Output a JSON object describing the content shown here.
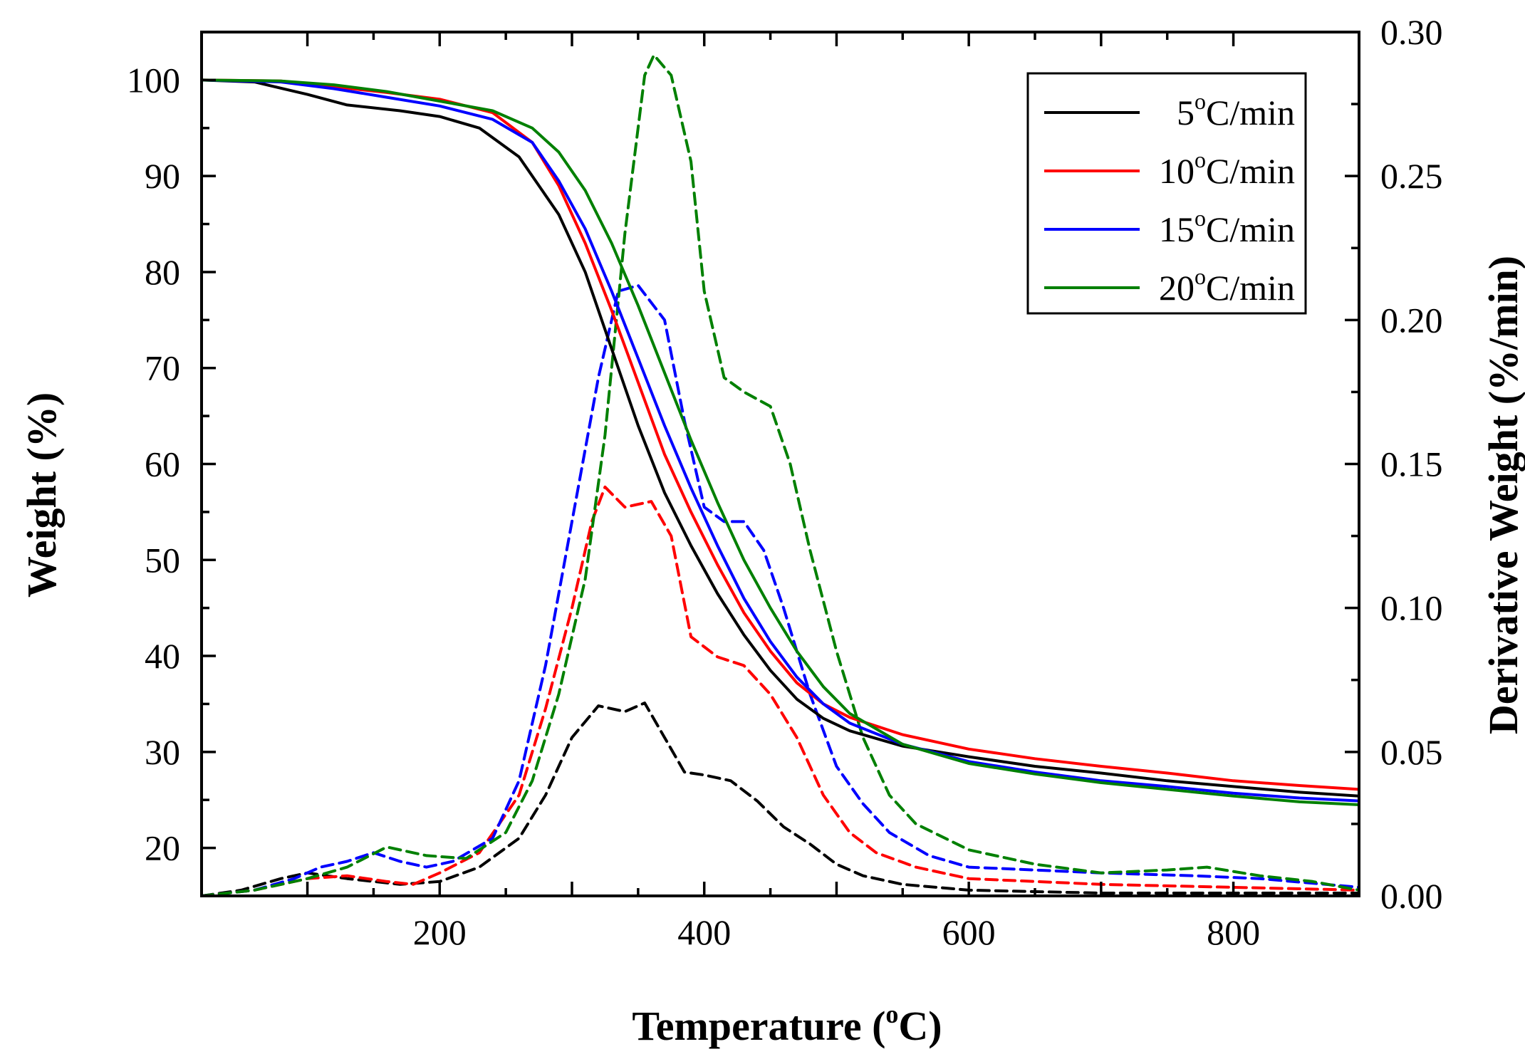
{
  "chart_data": {
    "type": "line",
    "title": "",
    "xlabel_main": "Temperature (",
    "xlabel_sup": "o",
    "xlabel_tail": "C)",
    "ylabel": "Weight (%)",
    "y2label": "Derivative Weight (%/min)",
    "xlim": [
      20,
      895
    ],
    "ylim": [
      15,
      105
    ],
    "y2lim": [
      0,
      0.3
    ],
    "x_ticks": [
      200,
      400,
      600,
      800
    ],
    "y_ticks": [
      20,
      30,
      40,
      50,
      60,
      70,
      80,
      90,
      100
    ],
    "y2_ticks": [
      "0.00",
      "0.05",
      "0.10",
      "0.15",
      "0.20",
      "0.25",
      "0.30"
    ],
    "legend_position": "top-right",
    "series": [
      {
        "name": "5",
        "legend_prefix": "5",
        "legend_sup": "o",
        "legend_suffix": "C/min",
        "color": "#000000",
        "weight": [
          [
            20,
            100
          ],
          [
            60,
            99.8
          ],
          [
            100,
            98.5
          ],
          [
            130,
            97.4
          ],
          [
            170,
            96.8
          ],
          [
            200,
            96.2
          ],
          [
            230,
            95
          ],
          [
            260,
            92
          ],
          [
            290,
            86
          ],
          [
            310,
            80
          ],
          [
            330,
            72
          ],
          [
            350,
            64
          ],
          [
            370,
            57
          ],
          [
            390,
            51.5
          ],
          [
            410,
            46.5
          ],
          [
            430,
            42.2
          ],
          [
            450,
            38.5
          ],
          [
            470,
            35.5
          ],
          [
            490,
            33.5
          ],
          [
            510,
            32.2
          ],
          [
            550,
            30.6
          ],
          [
            600,
            29.5
          ],
          [
            650,
            28.5
          ],
          [
            700,
            27.8
          ],
          [
            750,
            27
          ],
          [
            800,
            26.4
          ],
          [
            850,
            25.8
          ],
          [
            895,
            25.4
          ]
        ],
        "derivative": [
          [
            20,
            0
          ],
          [
            50,
            0.002
          ],
          [
            80,
            0.006
          ],
          [
            100,
            0.008
          ],
          [
            130,
            0.006
          ],
          [
            170,
            0.004
          ],
          [
            200,
            0.005
          ],
          [
            230,
            0.01
          ],
          [
            260,
            0.02
          ],
          [
            280,
            0.035
          ],
          [
            300,
            0.055
          ],
          [
            320,
            0.066
          ],
          [
            340,
            0.064
          ],
          [
            355,
            0.067
          ],
          [
            370,
            0.055
          ],
          [
            385,
            0.043
          ],
          [
            400,
            0.042
          ],
          [
            420,
            0.04
          ],
          [
            440,
            0.033
          ],
          [
            460,
            0.024
          ],
          [
            480,
            0.018
          ],
          [
            500,
            0.011
          ],
          [
            520,
            0.007
          ],
          [
            550,
            0.004
          ],
          [
            600,
            0.002
          ],
          [
            700,
            0.001
          ],
          [
            800,
            0.001
          ],
          [
            895,
            0.001
          ]
        ]
      },
      {
        "name": "10",
        "legend_prefix": "10",
        "legend_sup": "o",
        "legend_suffix": "C/min",
        "color": "#ff0000",
        "weight": [
          [
            20,
            100
          ],
          [
            80,
            99.9
          ],
          [
            120,
            99.3
          ],
          [
            160,
            98.7
          ],
          [
            200,
            98
          ],
          [
            240,
            96.6
          ],
          [
            270,
            93.5
          ],
          [
            290,
            89
          ],
          [
            310,
            83
          ],
          [
            330,
            76
          ],
          [
            350,
            68.5
          ],
          [
            370,
            61
          ],
          [
            390,
            55
          ],
          [
            410,
            49.5
          ],
          [
            430,
            44.5
          ],
          [
            450,
            40.5
          ],
          [
            470,
            37.2
          ],
          [
            490,
            35
          ],
          [
            510,
            33.6
          ],
          [
            550,
            31.8
          ],
          [
            600,
            30.3
          ],
          [
            650,
            29.3
          ],
          [
            700,
            28.5
          ],
          [
            750,
            27.8
          ],
          [
            800,
            27
          ],
          [
            850,
            26.5
          ],
          [
            895,
            26.1
          ]
        ],
        "derivative": [
          [
            20,
            0
          ],
          [
            60,
            0.002
          ],
          [
            100,
            0.006
          ],
          [
            130,
            0.007
          ],
          [
            160,
            0.005
          ],
          [
            180,
            0.004
          ],
          [
            200,
            0.008
          ],
          [
            230,
            0.015
          ],
          [
            260,
            0.035
          ],
          [
            280,
            0.065
          ],
          [
            300,
            0.1
          ],
          [
            315,
            0.13
          ],
          [
            325,
            0.142
          ],
          [
            340,
            0.135
          ],
          [
            360,
            0.137
          ],
          [
            375,
            0.125
          ],
          [
            390,
            0.09
          ],
          [
            410,
            0.083
          ],
          [
            430,
            0.08
          ],
          [
            450,
            0.07
          ],
          [
            470,
            0.055
          ],
          [
            490,
            0.035
          ],
          [
            510,
            0.022
          ],
          [
            530,
            0.015
          ],
          [
            560,
            0.01
          ],
          [
            600,
            0.006
          ],
          [
            700,
            0.004
          ],
          [
            800,
            0.003
          ],
          [
            895,
            0.002
          ]
        ]
      },
      {
        "name": "15",
        "legend_prefix": "15",
        "legend_sup": "o",
        "legend_suffix": "C/min",
        "color": "#0000ff",
        "weight": [
          [
            20,
            100
          ],
          [
            80,
            99.8
          ],
          [
            120,
            99.1
          ],
          [
            160,
            98.2
          ],
          [
            200,
            97.3
          ],
          [
            240,
            95.9
          ],
          [
            270,
            93.5
          ],
          [
            290,
            89.5
          ],
          [
            310,
            84.5
          ],
          [
            330,
            78
          ],
          [
            350,
            71
          ],
          [
            370,
            64
          ],
          [
            390,
            57.5
          ],
          [
            410,
            51.5
          ],
          [
            430,
            46
          ],
          [
            450,
            41.5
          ],
          [
            470,
            37.8
          ],
          [
            490,
            35
          ],
          [
            510,
            33
          ],
          [
            550,
            30.8
          ],
          [
            600,
            29
          ],
          [
            650,
            27.9
          ],
          [
            700,
            27
          ],
          [
            750,
            26.4
          ],
          [
            800,
            25.7
          ],
          [
            850,
            25.2
          ],
          [
            895,
            24.9
          ]
        ],
        "derivative": [
          [
            20,
            0
          ],
          [
            60,
            0.002
          ],
          [
            90,
            0.006
          ],
          [
            110,
            0.01
          ],
          [
            130,
            0.012
          ],
          [
            150,
            0.015
          ],
          [
            170,
            0.012
          ],
          [
            190,
            0.01
          ],
          [
            210,
            0.012
          ],
          [
            240,
            0.02
          ],
          [
            260,
            0.04
          ],
          [
            280,
            0.08
          ],
          [
            300,
            0.13
          ],
          [
            320,
            0.18
          ],
          [
            335,
            0.21
          ],
          [
            350,
            0.212
          ],
          [
            370,
            0.2
          ],
          [
            385,
            0.165
          ],
          [
            400,
            0.135
          ],
          [
            415,
            0.13
          ],
          [
            430,
            0.13
          ],
          [
            445,
            0.12
          ],
          [
            460,
            0.1
          ],
          [
            480,
            0.07
          ],
          [
            500,
            0.045
          ],
          [
            520,
            0.032
          ],
          [
            540,
            0.022
          ],
          [
            570,
            0.014
          ],
          [
            600,
            0.01
          ],
          [
            700,
            0.008
          ],
          [
            770,
            0.007
          ],
          [
            820,
            0.006
          ],
          [
            895,
            0.003
          ]
        ]
      },
      {
        "name": "20",
        "legend_prefix": "20",
        "legend_sup": "o",
        "legend_suffix": "C/min",
        "color": "#008000",
        "weight": [
          [
            20,
            100
          ],
          [
            80,
            99.9
          ],
          [
            120,
            99.5
          ],
          [
            160,
            98.8
          ],
          [
            200,
            97.8
          ],
          [
            240,
            96.8
          ],
          [
            270,
            95
          ],
          [
            290,
            92.5
          ],
          [
            310,
            88.5
          ],
          [
            330,
            83
          ],
          [
            350,
            76.5
          ],
          [
            370,
            69.5
          ],
          [
            390,
            62.5
          ],
          [
            410,
            56
          ],
          [
            430,
            50
          ],
          [
            450,
            45
          ],
          [
            470,
            40.5
          ],
          [
            490,
            36.8
          ],
          [
            510,
            34
          ],
          [
            550,
            30.8
          ],
          [
            600,
            28.8
          ],
          [
            650,
            27.7
          ],
          [
            700,
            26.8
          ],
          [
            750,
            26.1
          ],
          [
            800,
            25.4
          ],
          [
            850,
            24.8
          ],
          [
            895,
            24.5
          ]
        ],
        "derivative": [
          [
            20,
            0
          ],
          [
            60,
            0.002
          ],
          [
            100,
            0.006
          ],
          [
            130,
            0.01
          ],
          [
            160,
            0.017
          ],
          [
            190,
            0.014
          ],
          [
            220,
            0.013
          ],
          [
            250,
            0.022
          ],
          [
            270,
            0.04
          ],
          [
            290,
            0.07
          ],
          [
            310,
            0.11
          ],
          [
            325,
            0.16
          ],
          [
            340,
            0.23
          ],
          [
            355,
            0.285
          ],
          [
            362,
            0.292
          ],
          [
            375,
            0.285
          ],
          [
            390,
            0.255
          ],
          [
            400,
            0.21
          ],
          [
            415,
            0.18
          ],
          [
            430,
            0.175
          ],
          [
            450,
            0.17
          ],
          [
            465,
            0.15
          ],
          [
            480,
            0.12
          ],
          [
            500,
            0.085
          ],
          [
            520,
            0.055
          ],
          [
            540,
            0.035
          ],
          [
            560,
            0.025
          ],
          [
            600,
            0.016
          ],
          [
            650,
            0.011
          ],
          [
            700,
            0.008
          ],
          [
            750,
            0.009
          ],
          [
            780,
            0.01
          ],
          [
            820,
            0.007
          ],
          [
            860,
            0.005
          ],
          [
            895,
            0.002
          ]
        ]
      }
    ]
  }
}
